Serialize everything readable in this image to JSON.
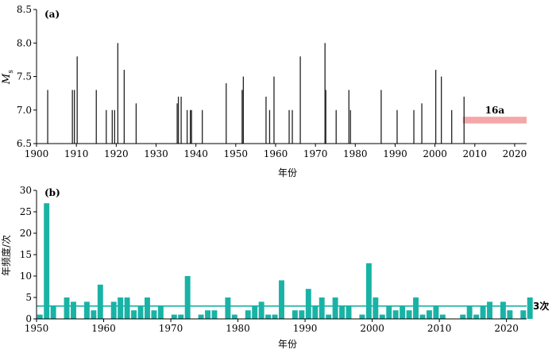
{
  "chart_data": [
    {
      "type": "bar",
      "panel_label": "(a)",
      "xlabel": "年份",
      "ylabel": "M",
      "ylabel_sub": "s",
      "xlim": [
        1900,
        2023
      ],
      "ylim": [
        6.5,
        8.5
      ],
      "xticks": [
        1900,
        1910,
        1920,
        1930,
        1940,
        1950,
        1960,
        1970,
        1980,
        1990,
        2000,
        2010,
        2020
      ],
      "yticks": [
        "6.5",
        "7.0",
        "7.5",
        "8.0",
        "8.5"
      ],
      "annotation": {
        "label": "16a",
        "x_start": 2007,
        "x_end": 2023,
        "y_low": 6.8,
        "y_high": 6.9,
        "color": "#f4a6a8"
      },
      "points": [
        {
          "x": 1902.8,
          "y": 7.3
        },
        {
          "x": 1909.0,
          "y": 7.3
        },
        {
          "x": 1909.5,
          "y": 7.3
        },
        {
          "x": 1910.2,
          "y": 7.8
        },
        {
          "x": 1915.0,
          "y": 7.3
        },
        {
          "x": 1917.5,
          "y": 7.0
        },
        {
          "x": 1919.0,
          "y": 7.0
        },
        {
          "x": 1919.6,
          "y": 7.0
        },
        {
          "x": 1920.4,
          "y": 8.0
        },
        {
          "x": 1922.0,
          "y": 7.6
        },
        {
          "x": 1925.0,
          "y": 7.1
        },
        {
          "x": 1935.3,
          "y": 7.1
        },
        {
          "x": 1935.6,
          "y": 7.2
        },
        {
          "x": 1936.3,
          "y": 7.2
        },
        {
          "x": 1937.8,
          "y": 7.0
        },
        {
          "x": 1938.6,
          "y": 7.0
        },
        {
          "x": 1938.9,
          "y": 7.0
        },
        {
          "x": 1941.6,
          "y": 7.0
        },
        {
          "x": 1947.6,
          "y": 7.4
        },
        {
          "x": 1951.6,
          "y": 7.3
        },
        {
          "x": 1951.9,
          "y": 7.5
        },
        {
          "x": 1957.6,
          "y": 7.2
        },
        {
          "x": 1958.5,
          "y": 7.0
        },
        {
          "x": 1959.6,
          "y": 7.5
        },
        {
          "x": 1963.4,
          "y": 7.0
        },
        {
          "x": 1964.2,
          "y": 7.0
        },
        {
          "x": 1966.2,
          "y": 7.8
        },
        {
          "x": 1972.4,
          "y": 8.0
        },
        {
          "x": 1972.6,
          "y": 7.3
        },
        {
          "x": 1975.2,
          "y": 7.0
        },
        {
          "x": 1978.4,
          "y": 7.3
        },
        {
          "x": 1978.8,
          "y": 7.0
        },
        {
          "x": 1986.5,
          "y": 7.3
        },
        {
          "x": 1990.5,
          "y": 7.0
        },
        {
          "x": 1994.7,
          "y": 7.0
        },
        {
          "x": 1996.7,
          "y": 7.1
        },
        {
          "x": 2000.2,
          "y": 7.6
        },
        {
          "x": 2001.6,
          "y": 7.5
        },
        {
          "x": 2004.2,
          "y": 7.0
        },
        {
          "x": 2007.3,
          "y": 7.2
        }
      ]
    },
    {
      "type": "bar",
      "panel_label": "(b)",
      "xlabel": "年份",
      "ylabel": "年频度/次",
      "xlim": [
        1950,
        2023
      ],
      "ylim": [
        0,
        30
      ],
      "xticks": [
        1950,
        1960,
        1970,
        1980,
        1990,
        2000,
        2010,
        2020
      ],
      "yticks": [
        0,
        5,
        10,
        15,
        20,
        25,
        30
      ],
      "mean_line": {
        "value": 3,
        "label": "3次"
      },
      "bar_color": "#19b3a6",
      "categories": [
        1950,
        1951,
        1952,
        1953,
        1954,
        1955,
        1956,
        1957,
        1958,
        1959,
        1960,
        1961,
        1962,
        1963,
        1964,
        1965,
        1966,
        1967,
        1968,
        1969,
        1970,
        1971,
        1972,
        1973,
        1974,
        1975,
        1976,
        1977,
        1978,
        1979,
        1980,
        1981,
        1982,
        1983,
        1984,
        1985,
        1986,
        1987,
        1988,
        1989,
        1990,
        1991,
        1992,
        1993,
        1994,
        1995,
        1996,
        1997,
        1998,
        1999,
        2000,
        2001,
        2002,
        2003,
        2004,
        2005,
        2006,
        2007,
        2008,
        2009,
        2010,
        2011,
        2012,
        2013,
        2014,
        2015,
        2016,
        2017,
        2018,
        2019,
        2020,
        2021,
        2022,
        2023
      ],
      "values": [
        1,
        27,
        3,
        0,
        5,
        4,
        0,
        4,
        2,
        8,
        0,
        4,
        5,
        5,
        2,
        3,
        5,
        2,
        3,
        0,
        1,
        1,
        10,
        0,
        1,
        2,
        2,
        0,
        5,
        1,
        0,
        2,
        3,
        4,
        1,
        1,
        9,
        0,
        2,
        2,
        7,
        3,
        5,
        1,
        5,
        3,
        3,
        0,
        1,
        13,
        5,
        1,
        3,
        2,
        3,
        2,
        5,
        1,
        2,
        3,
        1,
        0,
        0,
        1,
        3,
        1,
        3,
        4,
        0,
        4,
        2,
        0,
        2,
        5
      ]
    }
  ]
}
